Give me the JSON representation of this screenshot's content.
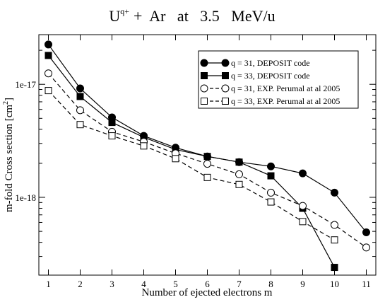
{
  "chart_data": {
    "type": "line",
    "title": {
      "base": "U",
      "superscript": "q+",
      "rest": "+  Ar   at   3.5   MeV/u"
    },
    "xlabel": "Number of ejected electrons m",
    "ylabel": {
      "base": "m-fold Cross section [cm",
      "superscript": "2",
      "close": "]"
    },
    "xlim": [
      0.7,
      11.3
    ],
    "ylim": [
      2.05e-19,
      2.75e-17
    ],
    "log_y": true,
    "grid": false,
    "legend_position": "top-right",
    "x_ticks": [
      1,
      2,
      3,
      4,
      5,
      6,
      7,
      8,
      9,
      10,
      11
    ],
    "x_tick_labels": [
      "1",
      "2",
      "3",
      "4",
      "5",
      "6",
      "7",
      "8",
      "9",
      "10",
      "11"
    ],
    "y_ticks": [
      1e-18,
      1e-17
    ],
    "y_tick_labels": [
      "1e-18",
      "1e-17"
    ],
    "series": [
      {
        "name": "q = 31, DEPOSIT code",
        "marker": "circle",
        "filled": true,
        "dashed": false,
        "x": [
          1,
          2,
          3,
          4,
          5,
          6,
          7,
          8,
          9,
          10,
          11
        ],
        "y": [
          2.25e-17,
          9.2e-18,
          5.1e-18,
          3.5e-18,
          2.75e-18,
          2.3e-18,
          2.05e-18,
          1.88e-18,
          1.63e-18,
          1.1e-18,
          4.9e-19
        ]
      },
      {
        "name": "q = 33, DEPOSIT code",
        "marker": "square",
        "filled": true,
        "dashed": false,
        "x": [
          1,
          2,
          3,
          4,
          5,
          6,
          7,
          8,
          9,
          10
        ],
        "y": [
          1.8e-17,
          7.8e-18,
          4.6e-18,
          3.4e-18,
          2.65e-18,
          2.3e-18,
          2.05e-18,
          1.55e-18,
          8e-19,
          2.4e-19
        ]
      },
      {
        "name": "q = 31, EXP. Perumal at al 2005",
        "marker": "circle",
        "filled": false,
        "dashed": true,
        "x": [
          1,
          2,
          3,
          4,
          5,
          6,
          7,
          8,
          9,
          10,
          11
        ],
        "y": [
          1.25e-17,
          5.9e-18,
          3.8e-18,
          3.1e-18,
          2.45e-18,
          1.98e-18,
          1.6e-18,
          1.1e-18,
          8.4e-19,
          5.7e-19,
          3.6e-19
        ]
      },
      {
        "name": "q = 33, EXP. Perumal at al 2005",
        "marker": "square",
        "filled": false,
        "dashed": true,
        "x": [
          1,
          2,
          3,
          4,
          5,
          6,
          7,
          8,
          9,
          10
        ],
        "y": [
          8.8e-18,
          4.4e-18,
          3.5e-18,
          2.85e-18,
          2.2e-18,
          1.5e-18,
          1.3e-18,
          9.1e-19,
          6.1e-19,
          4.2e-19
        ]
      }
    ]
  }
}
